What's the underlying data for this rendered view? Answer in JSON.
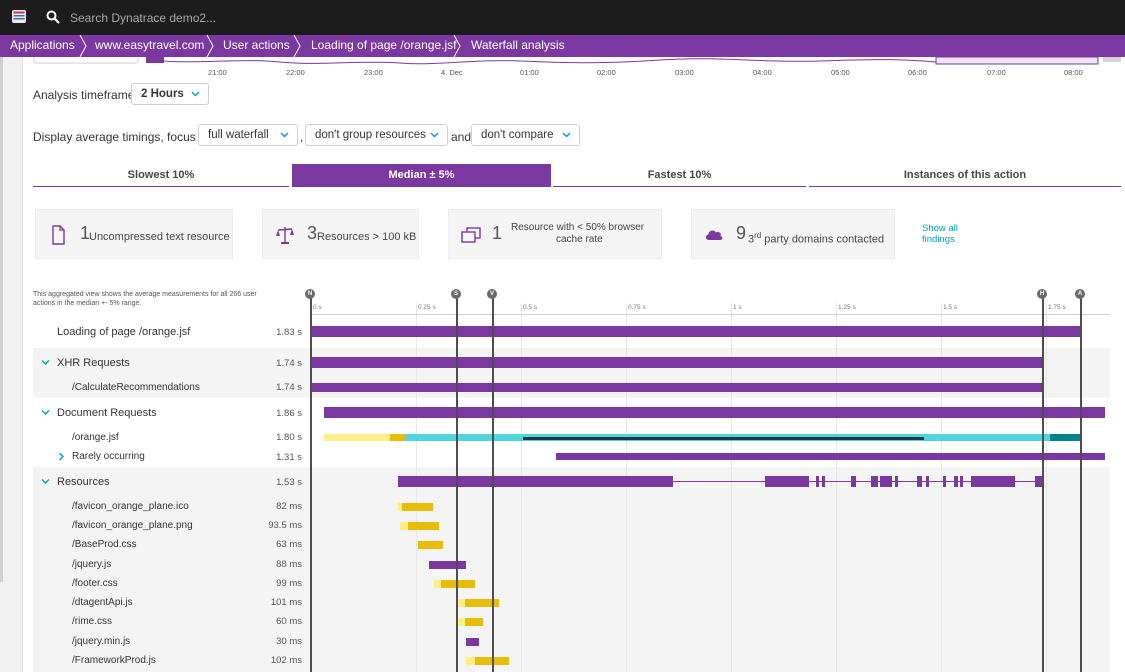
{
  "topbar": {
    "search_placeholder": "Search Dynatrace demo2...",
    "logo_icon": "dynatrace-logo-icon",
    "search_icon": "search-icon"
  },
  "breadcrumb": [
    "Applications",
    "www.easytravel.com",
    "User actions",
    "Loading of page /orange.jsf",
    "Waterfall analysis"
  ],
  "timeline": {
    "labels": [
      "21:00",
      "22:00",
      "23:00",
      "4. Dec",
      "01:00",
      "02:00",
      "03:00",
      "04:00",
      "05:00",
      "06:00",
      "07:00",
      "08:00"
    ]
  },
  "timeframe": {
    "label": "Analysis timeframe:",
    "value": "2 Hours"
  },
  "display": {
    "label": "Display average timings, focus on",
    "focus": "full waterfall",
    "comma": ",",
    "group": "don't group resources",
    "and": "and",
    "compare": "don't compare"
  },
  "tabs": [
    {
      "label": "Slowest 10%",
      "active": false
    },
    {
      "label": "Median ± 5%",
      "active": true
    },
    {
      "label": "Fastest 10%",
      "active": false
    },
    {
      "label": "Instances of this action",
      "active": false
    }
  ],
  "findings": {
    "cards": [
      {
        "count": "1",
        "text": "Uncompressed text resource",
        "icon": "document-icon"
      },
      {
        "count": "3",
        "text": "Resources > 100 kB",
        "icon": "scale-icon"
      },
      {
        "count": "1",
        "text_line1": "Resource with < 50% browser",
        "text_line2": "cache rate",
        "icon": "cache-windows-icon"
      },
      {
        "count": "9",
        "sup": "rd",
        "prefix": "3",
        "text": " party domains contacted",
        "icon": "cloud-icon"
      }
    ],
    "show_all_line1": "Show all",
    "show_all_line2": "findings"
  },
  "waterfall": {
    "note": "This aggregated view shows the average measurements for all 266 user actions in the median +- 5% range.",
    "scale_labels": [
      "0 s",
      "0.25 s",
      "0.5 s",
      "0.75 s",
      "1 s",
      "1.25 s",
      "1.5 s",
      "1.75 s"
    ],
    "markers": [
      "N",
      "S",
      "V",
      "H",
      "A"
    ],
    "rows": [
      {
        "name": "Loading of page /orange.jsf",
        "value": "1.83 s"
      },
      {
        "name": "XHR Requests",
        "value": "1.74 s",
        "toggle": "chevron-down-icon"
      },
      {
        "name": "/CalculateRecommendations",
        "value": "1.74 s"
      },
      {
        "name": "Document Requests",
        "value": "1.86 s",
        "toggle": "chevron-down-icon"
      },
      {
        "name": "/orange.jsf",
        "value": "1.80 s"
      },
      {
        "name": "Rarely occurring",
        "value": "1.31 s",
        "toggle": "chevron-right-icon"
      },
      {
        "name": "Resources",
        "value": "1.53 s",
        "toggle": "chevron-down-icon"
      },
      {
        "name": "/favicon_orange_plane.ico",
        "value": "82 ms"
      },
      {
        "name": "/favicon_orange_plane.png",
        "value": "93.5 ms"
      },
      {
        "name": "/BaseProd.css",
        "value": "63 ms"
      },
      {
        "name": "/jquery.js",
        "value": "88 ms"
      },
      {
        "name": "/footer.css",
        "value": "99 ms"
      },
      {
        "name": "/dtagentApi.js",
        "value": "101 ms"
      },
      {
        "name": "/rime.css",
        "value": "60 ms"
      },
      {
        "name": "/jquery.min.js",
        "value": "30 ms"
      },
      {
        "name": "/FrameworkProd.js",
        "value": "102 ms"
      }
    ]
  },
  "colors": {
    "purple": "#7c38a1",
    "yellow": "#e6be0a",
    "light_yellow": "#fdee8a",
    "cyan": "#4fd5e0",
    "dark_teal": "#00848e"
  }
}
